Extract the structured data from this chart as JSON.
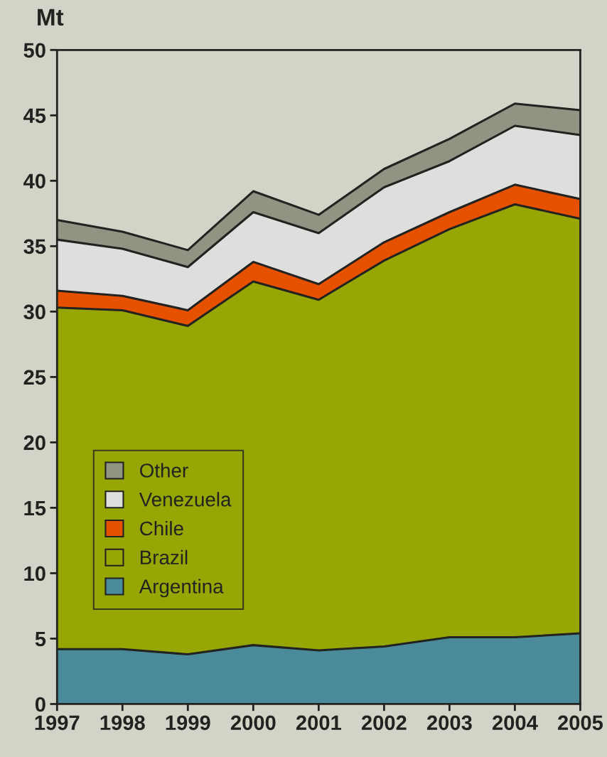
{
  "chart_data": {
    "type": "area",
    "stacked": true,
    "ylabel": "Mt",
    "x": [
      1997,
      1998,
      1999,
      2000,
      2001,
      2002,
      2003,
      2004,
      2005
    ],
    "xlim": [
      1997,
      2005
    ],
    "xticks": [
      1997,
      1998,
      1999,
      2000,
      2001,
      2002,
      2003,
      2004,
      2005
    ],
    "ylim": [
      0,
      50
    ],
    "yticks": [
      0,
      5,
      10,
      15,
      20,
      25,
      30,
      35,
      40,
      45,
      50
    ],
    "grid": false,
    "legend": "bottom left",
    "series": [
      {
        "name": "Argentina",
        "color": "#4a8a9a",
        "values": [
          4.2,
          4.2,
          3.8,
          4.5,
          4.1,
          4.4,
          5.1,
          5.1,
          5.4
        ]
      },
      {
        "name": "Brazil",
        "color": "#96a705",
        "values": [
          26.1,
          25.9,
          25.1,
          27.8,
          26.8,
          29.5,
          31.2,
          33.1,
          31.7
        ]
      },
      {
        "name": "Chile",
        "color": "#e65100",
        "values": [
          1.3,
          1.1,
          1.2,
          1.5,
          1.2,
          1.4,
          1.3,
          1.5,
          1.5
        ]
      },
      {
        "name": "Venezuela",
        "color": "#dededd",
        "values": [
          3.9,
          3.6,
          3.3,
          3.8,
          3.9,
          4.2,
          3.9,
          4.5,
          4.9
        ]
      },
      {
        "name": "Other",
        "color": "#919383",
        "values": [
          1.5,
          1.3,
          1.3,
          1.6,
          1.4,
          1.4,
          1.7,
          1.7,
          1.9
        ]
      }
    ]
  }
}
